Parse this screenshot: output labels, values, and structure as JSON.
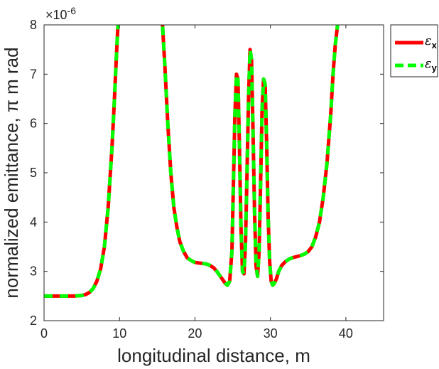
{
  "chart_data": {
    "type": "line",
    "title": "",
    "xlabel": "longitudinal distance, m",
    "ylabel": "normalized emittance, π m rad",
    "xlim": [
      0,
      45
    ],
    "ylim": [
      2,
      8
    ],
    "y_multiplier": "×10",
    "y_exponent": "-6",
    "xticks": [
      "0",
      "10",
      "20",
      "30",
      "40"
    ],
    "yticks": [
      "2",
      "3",
      "4",
      "5",
      "6",
      "7",
      "8"
    ],
    "grid": false,
    "legend_position": "outside-top-right",
    "colors": {
      "series_x": "#ff0000",
      "series_y": "#00ff00",
      "axis": "#262626"
    },
    "series": [
      {
        "name": "ε",
        "subscript": "x",
        "style": "solid",
        "x": [
          0,
          1,
          2,
          3,
          4,
          5,
          5.5,
          6,
          6.5,
          7,
          7.5,
          8,
          8.5,
          9,
          9.3,
          9.6,
          9.8,
          10,
          15.5,
          15.7,
          16,
          16.4,
          16.8,
          17.2,
          17.6,
          18,
          18.5,
          19,
          19.5,
          20,
          20.5,
          21,
          21.5,
          22,
          22.5,
          23,
          23.5,
          24,
          24.3,
          24.6,
          24.9,
          25.1,
          25.3,
          25.5,
          25.7,
          25.9,
          26.1,
          26.3,
          26.5,
          26.7,
          26.9,
          27.1,
          27.3,
          27.5,
          27.7,
          27.9,
          28.1,
          28.3,
          28.5,
          28.7,
          28.9,
          29.1,
          29.3,
          29.5,
          29.7,
          29.9,
          30.1,
          30.3,
          30.5,
          30.8,
          31.1,
          31.5,
          32,
          32.5,
          33,
          33.5,
          34,
          34.5,
          35,
          35.5,
          36,
          36.5,
          37,
          37.5,
          38,
          38.3,
          38.6,
          38.9,
          39.2,
          39.5
        ],
        "y": [
          2.5,
          2.5,
          2.5,
          2.5,
          2.5,
          2.51,
          2.53,
          2.57,
          2.65,
          2.8,
          3.05,
          3.5,
          4.3,
          5.5,
          6.4,
          7.4,
          8.0,
          8.6,
          8.6,
          8.0,
          7.2,
          6.0,
          5.0,
          4.3,
          3.9,
          3.6,
          3.4,
          3.27,
          3.22,
          3.18,
          3.17,
          3.16,
          3.15,
          3.12,
          3.07,
          2.98,
          2.87,
          2.76,
          2.72,
          2.8,
          3.4,
          4.8,
          6.2,
          7.0,
          6.9,
          5.5,
          3.9,
          3.0,
          2.95,
          3.6,
          5.0,
          6.5,
          7.5,
          7.3,
          5.8,
          4.2,
          3.1,
          2.9,
          3.4,
          4.8,
          6.3,
          6.9,
          6.8,
          5.6,
          4.1,
          3.2,
          2.8,
          2.72,
          2.75,
          2.85,
          3.0,
          3.12,
          3.2,
          3.25,
          3.28,
          3.3,
          3.32,
          3.35,
          3.4,
          3.5,
          3.7,
          4.0,
          4.5,
          5.2,
          6.2,
          7.0,
          7.6,
          8.0,
          8.4,
          8.8
        ]
      },
      {
        "name": "ε",
        "subscript": "y",
        "style": "dashed",
        "x": [
          0,
          1,
          2,
          3,
          4,
          5,
          5.5,
          6,
          6.5,
          7,
          7.5,
          8,
          8.5,
          9,
          9.3,
          9.6,
          9.8,
          10,
          15.5,
          15.7,
          16,
          16.4,
          16.8,
          17.2,
          17.6,
          18,
          18.5,
          19,
          19.5,
          20,
          20.5,
          21,
          21.5,
          22,
          22.5,
          23,
          23.5,
          24,
          24.3,
          24.6,
          24.9,
          25.1,
          25.3,
          25.5,
          25.7,
          25.9,
          26.1,
          26.3,
          26.5,
          26.7,
          26.9,
          27.1,
          27.3,
          27.5,
          27.7,
          27.9,
          28.1,
          28.3,
          28.5,
          28.7,
          28.9,
          29.1,
          29.3,
          29.5,
          29.7,
          29.9,
          30.1,
          30.3,
          30.5,
          30.8,
          31.1,
          31.5,
          32,
          32.5,
          33,
          33.5,
          34,
          34.5,
          35,
          35.5,
          36,
          36.5,
          37,
          37.5,
          38,
          38.3,
          38.6,
          38.9,
          39.2,
          39.5
        ],
        "y": [
          2.5,
          2.5,
          2.5,
          2.5,
          2.5,
          2.51,
          2.53,
          2.57,
          2.65,
          2.8,
          3.05,
          3.5,
          4.3,
          5.5,
          6.4,
          7.4,
          8.0,
          8.6,
          8.6,
          8.0,
          7.2,
          6.0,
          5.0,
          4.3,
          3.9,
          3.6,
          3.4,
          3.27,
          3.22,
          3.18,
          3.17,
          3.16,
          3.15,
          3.12,
          3.07,
          2.98,
          2.87,
          2.76,
          2.72,
          2.8,
          3.4,
          4.8,
          6.2,
          7.0,
          6.9,
          5.5,
          3.9,
          3.0,
          2.95,
          3.6,
          5.0,
          6.5,
          7.5,
          7.3,
          5.8,
          4.2,
          3.1,
          2.9,
          3.4,
          4.8,
          6.3,
          6.9,
          6.8,
          5.6,
          4.1,
          3.2,
          2.8,
          2.72,
          2.75,
          2.85,
          3.0,
          3.12,
          3.2,
          3.25,
          3.28,
          3.3,
          3.32,
          3.35,
          3.4,
          3.5,
          3.7,
          4.0,
          4.5,
          5.2,
          6.2,
          7.0,
          7.6,
          8.0,
          8.4,
          8.8
        ]
      }
    ]
  }
}
